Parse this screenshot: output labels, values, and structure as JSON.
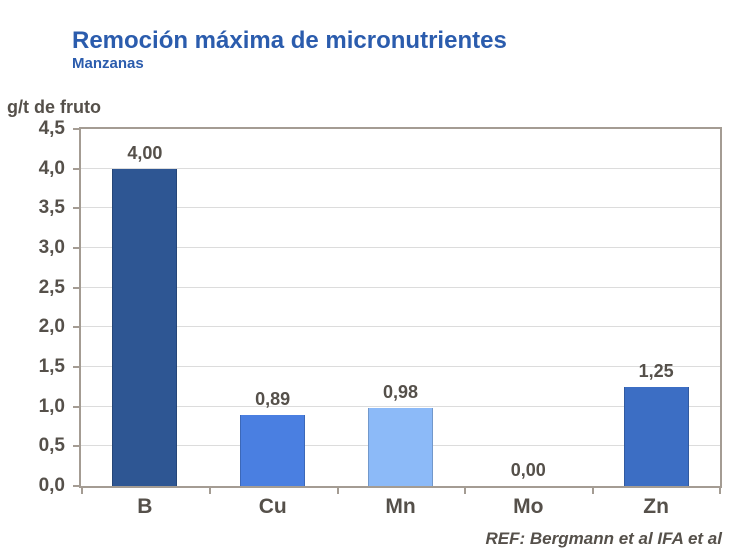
{
  "colors": {
    "title": "#2B5CAD",
    "text": "#55504A",
    "grid": "#DCDCDC",
    "plot_border": "#A49C93"
  },
  "chart_data": {
    "type": "bar",
    "title": "Remoción máxima de micronutrientes",
    "subtitle": "Manzanas",
    "unit_label": "g/t de fruto",
    "categories": [
      "B",
      "Cu",
      "Mn",
      "Mo",
      "Zn"
    ],
    "values": [
      4.0,
      0.89,
      0.98,
      0.0,
      1.25
    ],
    "value_labels": [
      "4,00",
      "0,89",
      "0,98",
      "0,00",
      "1,25"
    ],
    "bar_colors": [
      "#2E5693",
      "#4A7FE1",
      "#8CBAF8",
      "#4A7FE1",
      "#3C6EC4"
    ],
    "ylim": [
      0,
      4.5
    ],
    "ytick_step": 0.5,
    "ytick_labels": [
      "4,5",
      "4,0",
      "3,5",
      "3,0",
      "2,5",
      "2,0",
      "1,5",
      "1,0",
      "0,5",
      "0,0"
    ],
    "grid": true,
    "legend": "none",
    "reference": "REF: Bergmann et al IFA et al"
  }
}
